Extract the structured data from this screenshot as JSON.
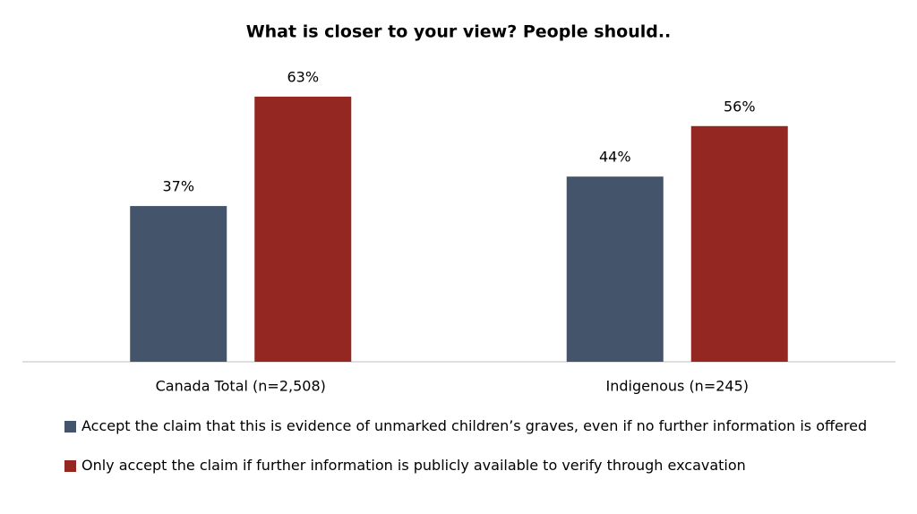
{
  "chart_data": {
    "type": "bar",
    "title": "What is closer to your view? People should..",
    "categories": [
      "Canada Total (n=2,508)",
      "Indigenous (n=245)"
    ],
    "series": [
      {
        "name": "Accept the claim that this is evidence of unmarked children’s graves, even if no further information is offered",
        "color": "#44546a",
        "values": [
          37,
          44
        ],
        "value_labels": [
          "37%",
          "44%"
        ]
      },
      {
        "name": "Only accept the claim if further information is publicly available to verify through excavation",
        "color": "#952722",
        "values": [
          63,
          56
        ],
        "value_labels": [
          "63%",
          "56%"
        ]
      }
    ],
    "ylim": [
      0,
      70
    ]
  }
}
